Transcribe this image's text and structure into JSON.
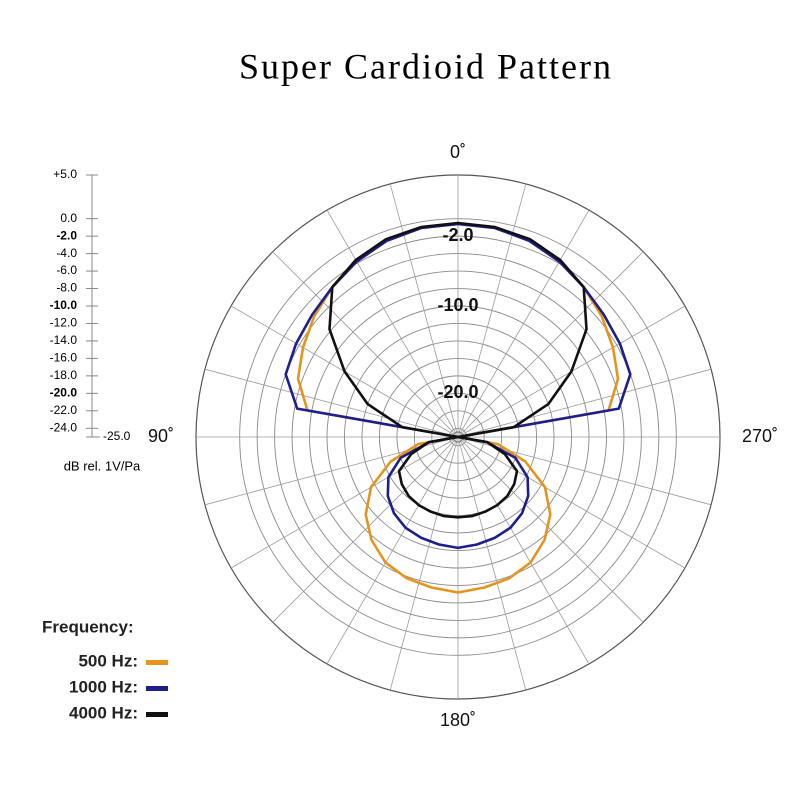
{
  "chart_data": {
    "type": "polar",
    "title": "Super Cardioid Pattern",
    "axis_label": "dB rel. 1V/Pa",
    "legend_title": "Frequency:",
    "rlim": [
      -25,
      5
    ],
    "rticks": [
      {
        "value": 5,
        "label": "+5.0"
      },
      {
        "value": 0,
        "label": "0.0"
      },
      {
        "value": -2,
        "label": "-2.0"
      },
      {
        "value": -4,
        "label": "-4.0"
      },
      {
        "value": -6,
        "label": "-6.0"
      },
      {
        "value": -8,
        "label": "-8.0"
      },
      {
        "value": -10,
        "label": "-10.0"
      },
      {
        "value": -12,
        "label": "-12.0"
      },
      {
        "value": -14,
        "label": "-14.0"
      },
      {
        "value": -16,
        "label": "-16.0"
      },
      {
        "value": -18,
        "label": "-18.0"
      },
      {
        "value": -20,
        "label": "-20.0"
      },
      {
        "value": -22,
        "label": "-22.0"
      },
      {
        "value": -24,
        "label": "-24.0"
      },
      {
        "value": -25,
        "label": "-25.0"
      }
    ],
    "ring_labels": [
      {
        "value": -2,
        "label": "-2.0"
      },
      {
        "value": -10,
        "label": "-10.0"
      },
      {
        "value": -20,
        "label": "-20.0"
      }
    ],
    "angle_labels": [
      {
        "value": 0,
        "label": "0˚"
      },
      {
        "value": 90,
        "label": "90˚"
      },
      {
        "value": 180,
        "label": "180˚"
      },
      {
        "value": 270,
        "label": "270˚"
      }
    ],
    "theta": [
      0,
      10,
      20,
      30,
      40,
      50,
      60,
      70,
      80,
      90,
      100,
      110,
      120,
      130,
      140,
      150,
      160,
      170,
      180,
      190,
      200,
      210,
      220,
      230,
      240,
      250,
      260,
      270,
      280,
      290,
      300,
      310,
      320,
      330,
      340,
      350
    ],
    "series": [
      {
        "name": "500 Hz:",
        "color": "#e5941c",
        "values": [
          -0.6,
          -0.7,
          -1.0,
          -1.7,
          -2.6,
          -3.5,
          -4.5,
          -5.5,
          -7.5,
          -25,
          -20.4,
          -16.8,
          -13.5,
          -11.2,
          -9.6,
          -8.4,
          -7.8,
          -7.5,
          -7.2,
          -7.5,
          -7.8,
          -8.4,
          -9.6,
          -11.2,
          -13.5,
          -16.8,
          -20.4,
          -25,
          -7.5,
          -5.5,
          -4.5,
          -3.5,
          -2.6,
          -1.7,
          -1.0,
          -0.7
        ]
      },
      {
        "name": "1000 Hz:",
        "color": "#1c1f8c",
        "values": [
          -0.6,
          -0.7,
          -1.1,
          -1.8,
          -2.6,
          -3.2,
          -3.6,
          -4.0,
          -6.3,
          -25,
          -21.6,
          -18.0,
          -15.8,
          -14.5,
          -13.6,
          -13.0,
          -12.7,
          -12.5,
          -12.3,
          -12.5,
          -12.7,
          -13.0,
          -13.6,
          -14.5,
          -15.8,
          -18.0,
          -21.6,
          -25,
          -6.3,
          -4.0,
          -3.6,
          -3.2,
          -2.6,
          -1.8,
          -1.1,
          -0.7
        ]
      },
      {
        "name": "4000 Hz:",
        "color": "#111111",
        "values": [
          -0.5,
          -0.6,
          -0.9,
          -1.6,
          -2.6,
          -5.8,
          -10.0,
          -14.0,
          -18.5,
          -25,
          -21.6,
          -19.3,
          -17.2,
          -16.6,
          -16.2,
          -16.0,
          -15.9,
          -15.8,
          -15.8,
          -15.8,
          -15.9,
          -16.0,
          -16.2,
          -16.6,
          -17.2,
          -19.3,
          -21.6,
          -25,
          -18.5,
          -14.0,
          -10.0,
          -5.8,
          -2.6,
          -1.6,
          -0.9,
          -0.6
        ]
      }
    ]
  }
}
